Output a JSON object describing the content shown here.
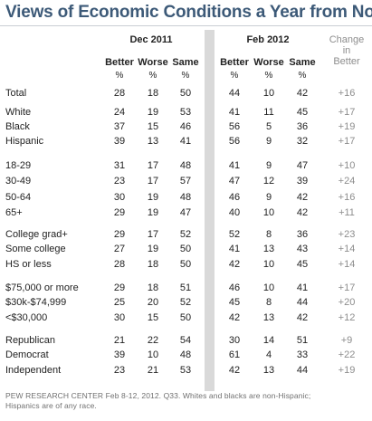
{
  "title": "Views of Economic Conditions a Year from Now",
  "chart_data": {
    "type": "table",
    "column_groups": [
      "Dec 2011",
      "Feb 2012"
    ],
    "columns": [
      "Better",
      "Worse",
      "Same"
    ],
    "units": [
      "%",
      "%",
      "%"
    ],
    "change_header": [
      "Change",
      "in",
      "Better"
    ],
    "row_groups": [
      [
        {
          "label": "Total",
          "dec": [
            "28",
            "18",
            "50"
          ],
          "feb": [
            "44",
            "10",
            "42"
          ],
          "change": "+16"
        }
      ],
      [
        {
          "label": "White",
          "dec": [
            "24",
            "19",
            "53"
          ],
          "feb": [
            "41",
            "11",
            "45"
          ],
          "change": "+17"
        },
        {
          "label": "Black",
          "dec": [
            "37",
            "15",
            "46"
          ],
          "feb": [
            "56",
            "5",
            "36"
          ],
          "change": "+19"
        },
        {
          "label": "Hispanic",
          "dec": [
            "39",
            "13",
            "41"
          ],
          "feb": [
            "56",
            "9",
            "32"
          ],
          "change": "+17"
        }
      ],
      [
        {
          "label": "18-29",
          "dec": [
            "31",
            "17",
            "48"
          ],
          "feb": [
            "41",
            "9",
            "47"
          ],
          "change": "+10"
        },
        {
          "label": "30-49",
          "dec": [
            "23",
            "17",
            "57"
          ],
          "feb": [
            "47",
            "12",
            "39"
          ],
          "change": "+24"
        },
        {
          "label": "50-64",
          "dec": [
            "30",
            "19",
            "48"
          ],
          "feb": [
            "46",
            "9",
            "42"
          ],
          "change": "+16"
        },
        {
          "label": "65+",
          "dec": [
            "29",
            "19",
            "47"
          ],
          "feb": [
            "40",
            "10",
            "42"
          ],
          "change": "+11"
        }
      ],
      [
        {
          "label": "College grad+",
          "dec": [
            "29",
            "17",
            "52"
          ],
          "feb": [
            "52",
            "8",
            "36"
          ],
          "change": "+23"
        },
        {
          "label": "Some college",
          "dec": [
            "27",
            "19",
            "50"
          ],
          "feb": [
            "41",
            "13",
            "43"
          ],
          "change": "+14"
        },
        {
          "label": "HS or less",
          "dec": [
            "28",
            "18",
            "50"
          ],
          "feb": [
            "42",
            "10",
            "45"
          ],
          "change": "+14"
        }
      ],
      [
        {
          "label": "$75,000 or more",
          "dec": [
            "29",
            "18",
            "51"
          ],
          "feb": [
            "46",
            "10",
            "41"
          ],
          "change": "+17"
        },
        {
          "label": "$30k-$74,999",
          "dec": [
            "25",
            "20",
            "52"
          ],
          "feb": [
            "45",
            "8",
            "44"
          ],
          "change": "+20"
        },
        {
          "label": "<$30,000",
          "dec": [
            "30",
            "15",
            "50"
          ],
          "feb": [
            "42",
            "13",
            "42"
          ],
          "change": "+12"
        }
      ],
      [
        {
          "label": "Republican",
          "dec": [
            "21",
            "22",
            "54"
          ],
          "feb": [
            "30",
            "14",
            "51"
          ],
          "change": "+9"
        },
        {
          "label": "Democrat",
          "dec": [
            "39",
            "10",
            "48"
          ],
          "feb": [
            "61",
            "4",
            "33"
          ],
          "change": "+22"
        },
        {
          "label": "Independent",
          "dec": [
            "23",
            "21",
            "53"
          ],
          "feb": [
            "42",
            "13",
            "44"
          ],
          "change": "+19"
        }
      ]
    ]
  },
  "footer": [
    "PEW RESEARCH CENTER Feb 8-12, 2012. Q33. Whites and blacks are non-Hispanic;",
    "Hispanics are of any race."
  ],
  "colors": {
    "title": "#3d5a78",
    "band": "#d9d9d9",
    "change": "#8d8d8d",
    "text": "#222222"
  }
}
